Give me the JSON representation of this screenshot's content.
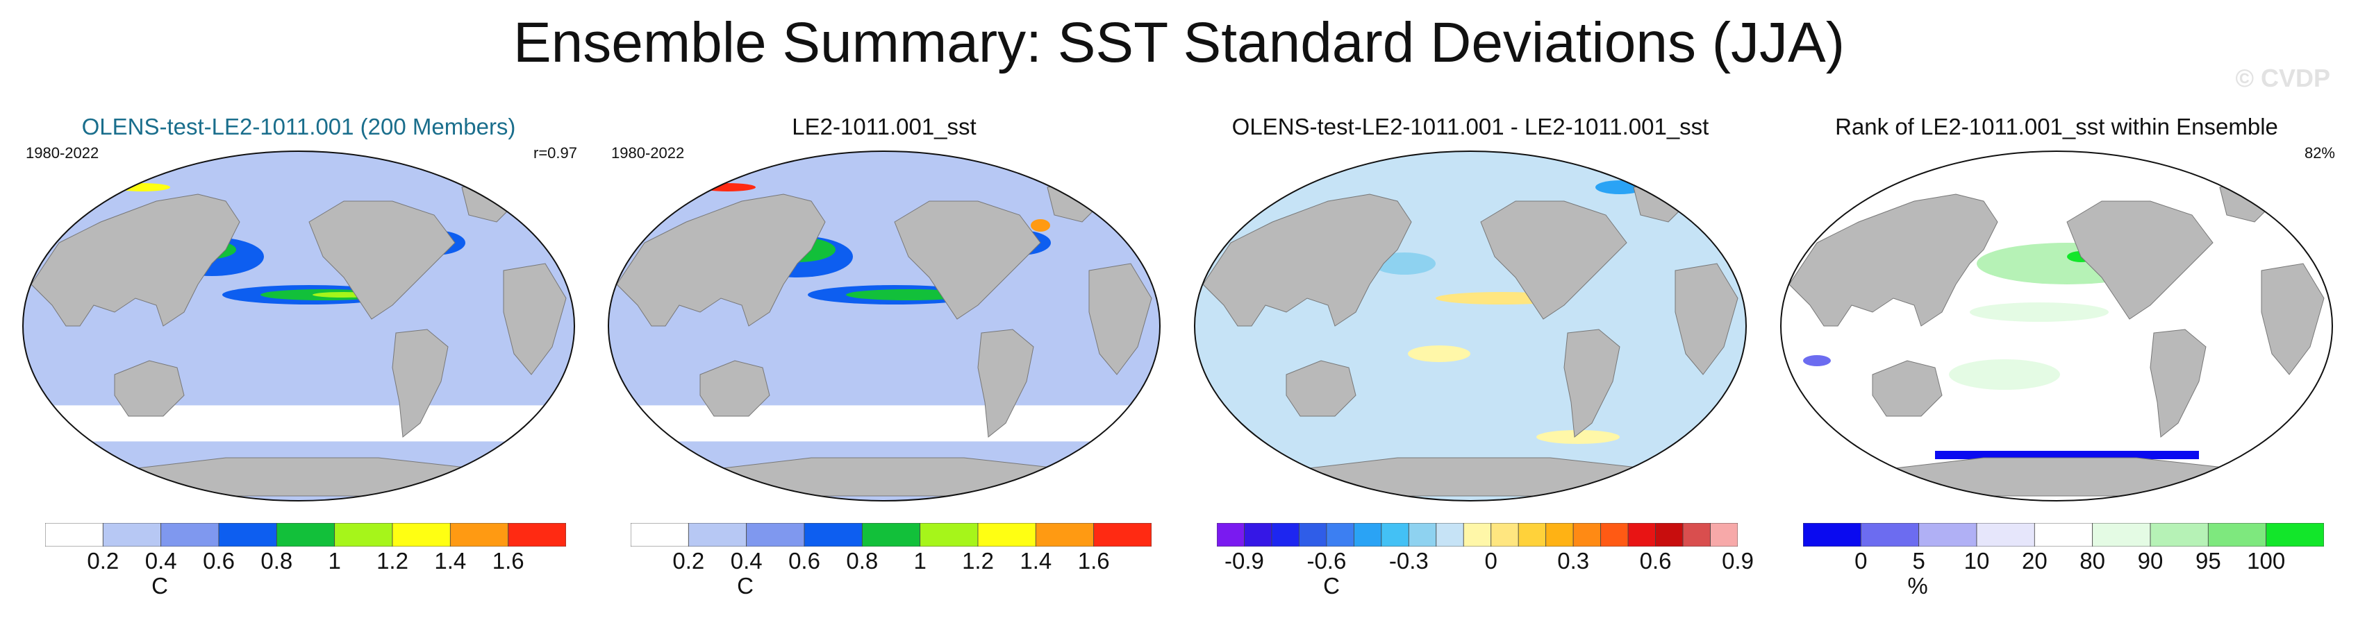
{
  "figure": {
    "title": "Ensemble Summary: SST Standard Deviations (JJA)",
    "watermark": "© CVDP"
  },
  "colors": {
    "land": "#b9b9b9",
    "panel1_fill": "#b7c8f4",
    "panel3_fill": "#c6e3f6",
    "panel4_fill": "#ffffff"
  },
  "panels": [
    {
      "title": "OLENS-test-LE2-1011.001 (200 Members)",
      "title_color": "#1a6e8c",
      "left_label": "1980-2022",
      "right_label": "r=0.97",
      "unit": "C",
      "ticks": [
        "0.2",
        "0.4",
        "0.6",
        "0.8",
        "1",
        "1.2",
        "1.4",
        "1.6"
      ],
      "colorbar": [
        "#ffffff",
        "#b7c8f4",
        "#7f98ef",
        "#0d5ef0",
        "#12c03a",
        "#a6f51a",
        "#ffff12",
        "#ff9a12",
        "#ff2a12"
      ]
    },
    {
      "title": "LE2-1011.001_sst",
      "title_color": "#111111",
      "left_label": "1980-2022",
      "right_label": "",
      "unit": "C",
      "ticks": [
        "0.2",
        "0.4",
        "0.6",
        "0.8",
        "1",
        "1.2",
        "1.4",
        "1.6"
      ],
      "colorbar": [
        "#ffffff",
        "#b7c8f4",
        "#7f98ef",
        "#0d5ef0",
        "#12c03a",
        "#a6f51a",
        "#ffff12",
        "#ff9a12",
        "#ff2a12"
      ]
    },
    {
      "title": "OLENS-test-LE2-1011.001 - LE2-1011.001_sst",
      "title_color": "#111111",
      "left_label": "",
      "right_label": "",
      "unit": "C",
      "ticks": [
        "-0.9",
        "-0.6",
        "-0.3",
        "0",
        "0.3",
        "0.6",
        "0.9"
      ],
      "colorbar": [
        "#7a1af0",
        "#3517e6",
        "#1d26f0",
        "#2f5de8",
        "#3c7ff2",
        "#2aa3f5",
        "#43c1f5",
        "#8ed2f0",
        "#c6e3f6",
        "#fff7a8",
        "#ffe680",
        "#ffd23a",
        "#ffb214",
        "#ff8a14",
        "#ff5a14",
        "#e81414",
        "#c80d0d",
        "#d94e4e",
        "#f7a9a9"
      ]
    },
    {
      "title": "Rank of LE2-1011.001_sst within Ensemble",
      "title_color": "#111111",
      "left_label": "",
      "right_label": "82%",
      "unit": "%",
      "ticks": [
        "0",
        "5",
        "10",
        "20",
        "80",
        "90",
        "95",
        "100"
      ],
      "colorbar": [
        "#0a0af0",
        "#6c6cf0",
        "#b0b0f5",
        "#e6e6fb",
        "#ffffff",
        "#e4fbe4",
        "#b6f2b6",
        "#7ee87e",
        "#12e62a"
      ]
    }
  ]
}
